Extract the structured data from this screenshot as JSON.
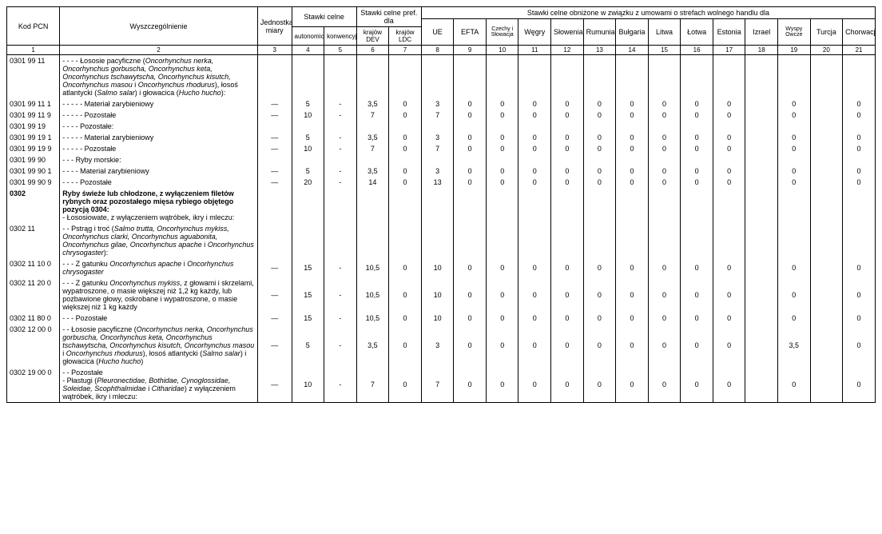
{
  "header": {
    "kod": "Kod PCN",
    "wysz": "Wyszczególnienie",
    "jedn": "Jednostka miary",
    "stawki_celne": "Stawki celne",
    "auto": "autonomiczne",
    "konw": "konwencyjne",
    "pref": "Stawki celne pref. dla",
    "dev": "krajów DEV",
    "ldc": "krajów LDC",
    "obniz": "Stawki celne obniżone w związku z umowami o strefach wolnego handlu dla",
    "ue": "UE",
    "efta": "EFTA",
    "czechy": "Czechy i Słowacja",
    "wegry": "Węgry",
    "slow": "Słowenia",
    "rum": "Rumunia",
    "bul": "Bułgaria",
    "litwa": "Litwa",
    "lotwa": "Łotwa",
    "est": "Estonia",
    "izr": "Izrael",
    "wyspy": "Wyspy Owcze",
    "tur": "Turcja",
    "chor": "Chorwacja"
  },
  "colnums": [
    "1",
    "2",
    "3",
    "4",
    "5",
    "6",
    "7",
    "8",
    "9",
    "10",
    "11",
    "12",
    "13",
    "14",
    "15",
    "16",
    "17",
    "18",
    "19",
    "20",
    "21"
  ],
  "rows": [
    {
      "code": "0301 99 11",
      "desc": "- - - - Łososie pacyficzne (<em>Oncorhynchus nerka, Oncorhynchus gorbuscha, Oncorhynchus keta, Oncorhynchus tschawytscha, Oncorhynchus kisutch, Oncorhynchus masou</em> i <em>Oncorhynchus rhodurus</em>), łosoś atlantycki (<em>Salmo salar</em>) i głowacica (<em>Hucho hucho</em>):",
      "vals": [
        "",
        "",
        "",
        "",
        "",
        "",
        "",
        "",
        "",
        "",
        "",
        "",
        "",
        "",
        "",
        "",
        "",
        "",
        ""
      ]
    },
    {
      "code": "0301 99 11 1",
      "desc": "- - - - - Materiał zarybieniowy",
      "vals": [
        "—",
        "5",
        "-",
        "3,5",
        "0",
        "3",
        "0",
        "0",
        "0",
        "0",
        "0",
        "0",
        "0",
        "0",
        "0",
        "",
        "0",
        "",
        "0"
      ]
    },
    {
      "code": "0301 99 11 9",
      "desc": "- - - - - Pozostałe",
      "vals": [
        "—",
        "10",
        "-",
        "7",
        "0",
        "7",
        "0",
        "0",
        "0",
        "0",
        "0",
        "0",
        "0",
        "0",
        "0",
        "",
        "0",
        "",
        "0"
      ]
    },
    {
      "code": "0301 99 19",
      "desc": "- - - - Pozostałe:",
      "vals": [
        "",
        "",
        "",
        "",
        "",
        "",
        "",
        "",
        "",
        "",
        "",
        "",
        "",
        "",
        "",
        "",
        "",
        "",
        ""
      ]
    },
    {
      "code": "0301 99 19 1",
      "desc": "- - - - - Materiał zarybieniowy",
      "vals": [
        "—",
        "5",
        "-",
        "3,5",
        "0",
        "3",
        "0",
        "0",
        "0",
        "0",
        "0",
        "0",
        "0",
        "0",
        "0",
        "",
        "0",
        "",
        "0"
      ]
    },
    {
      "code": "0301 99 19 9",
      "desc": "- - - - - Pozostałe",
      "vals": [
        "—",
        "10",
        "-",
        "7",
        "0",
        "7",
        "0",
        "0",
        "0",
        "0",
        "0",
        "0",
        "0",
        "0",
        "0",
        "",
        "0",
        "",
        "0"
      ]
    },
    {
      "code": "0301 99 90",
      "desc": "- - - Ryby morskie:",
      "vals": [
        "",
        "",
        "",
        "",
        "",
        "",
        "",
        "",
        "",
        "",
        "",
        "",
        "",
        "",
        "",
        "",
        "",
        "",
        ""
      ]
    },
    {
      "code": "0301 99 90 1",
      "desc": "- - - - Materiał zarybieniowy",
      "vals": [
        "—",
        "5",
        "-",
        "3,5",
        "0",
        "3",
        "0",
        "0",
        "0",
        "0",
        "0",
        "0",
        "0",
        "0",
        "0",
        "",
        "0",
        "",
        "0"
      ]
    },
    {
      "code": "0301 99 90 9",
      "desc": "- - - - Pozostałe",
      "vals": [
        "—",
        "20",
        "-",
        "14",
        "0",
        "13",
        "0",
        "0",
        "0",
        "0",
        "0",
        "0",
        "0",
        "0",
        "0",
        "",
        "0",
        "",
        "0"
      ]
    },
    {
      "code": "0302",
      "desc": "<span class='bold'>Ryby świeże lub chłodzone, z wyłączeniem filetów rybnych oraz pozostałego mięsa rybiego objętego pozycją 0304:</span><br>- Łososiowate, z wyłączeniem wątróbek, ikry i mleczu:",
      "vals": [
        "",
        "",
        "",
        "",
        "",
        "",
        "",
        "",
        "",
        "",
        "",
        "",
        "",
        "",
        "",
        "",
        "",
        "",
        ""
      ],
      "bold": true
    },
    {
      "code": "0302 11",
      "desc": "- - Pstrąg i troć (<em>Salmo trutta, Oncorhynchus mykiss, Oncorhynchus clarki, Oncorhynchus aguabonita, Oncorhynchus gilae, Oncorhynchus apache</em> i <em>Oncorhynchus chrysogaster</em>):",
      "vals": [
        "",
        "",
        "",
        "",
        "",
        "",
        "",
        "",
        "",
        "",
        "",
        "",
        "",
        "",
        "",
        "",
        "",
        "",
        ""
      ]
    },
    {
      "code": "0302 11 10 0",
      "desc": "- - - Z gatunku <em>Oncorhynchus apache</em> i <em>Oncorhynchus chrysogaster</em>",
      "vals": [
        "—",
        "15",
        "-",
        "10,5",
        "0",
        "10",
        "0",
        "0",
        "0",
        "0",
        "0",
        "0",
        "0",
        "0",
        "0",
        "",
        "0",
        "",
        "0"
      ]
    },
    {
      "code": "0302 11 20 0",
      "desc": "- - - Z gatunku <em>Oncorhynchus mykiss</em>, z głowami i skrzelami, wypatroszone, o masie większej niż 1,2 kg każdy, lub pozbawione głowy, oskrobane i wypatroszone, o masie większej niż 1 kg każdy",
      "vals": [
        "—",
        "15",
        "-",
        "10,5",
        "0",
        "10",
        "0",
        "0",
        "0",
        "0",
        "0",
        "0",
        "0",
        "0",
        "0",
        "",
        "0",
        "",
        "0"
      ]
    },
    {
      "code": "0302 11 80 0",
      "desc": "- - - Pozostałe",
      "vals": [
        "—",
        "15",
        "-",
        "10,5",
        "0",
        "10",
        "0",
        "0",
        "0",
        "0",
        "0",
        "0",
        "0",
        "0",
        "0",
        "",
        "0",
        "",
        "0"
      ]
    },
    {
      "code": "0302 12 00 0",
      "desc": "- - Łososie pacyficzne (<em>Oncorhynchus nerka, Oncorhynchus gorbuscha, Oncorhynchus keta, Oncorhynchus tschawytscha, Oncorhynchus kisutch, Oncorhynchus masou</em> i <em>Oncorhynchus rhodurus</em>), łosoś atlantycki (<em>Salmo salar</em>) i głowacica (<em>Hucho hucho</em>)",
      "vals": [
        "—",
        "5",
        "-",
        "3,5",
        "0",
        "3",
        "0",
        "0",
        "0",
        "0",
        "0",
        "0",
        "0",
        "0",
        "0",
        "",
        "3,5",
        "",
        "0"
      ]
    },
    {
      "code": "0302 19 00 0",
      "desc": "- - Pozostałe<br>- Płastugi (<em>Pleuronectidae, Bothidae, Cynoglossidae, Soleidae, Scophthalmidae</em> i <em>Citharidae</em>) z wyłączeniem wątróbek, ikry i mleczu:",
      "vals": [
        "—",
        "10",
        "-",
        "7",
        "0",
        "7",
        "0",
        "0",
        "0",
        "0",
        "0",
        "0",
        "0",
        "0",
        "0",
        "",
        "0",
        "",
        "0"
      ],
      "last": true
    }
  ]
}
